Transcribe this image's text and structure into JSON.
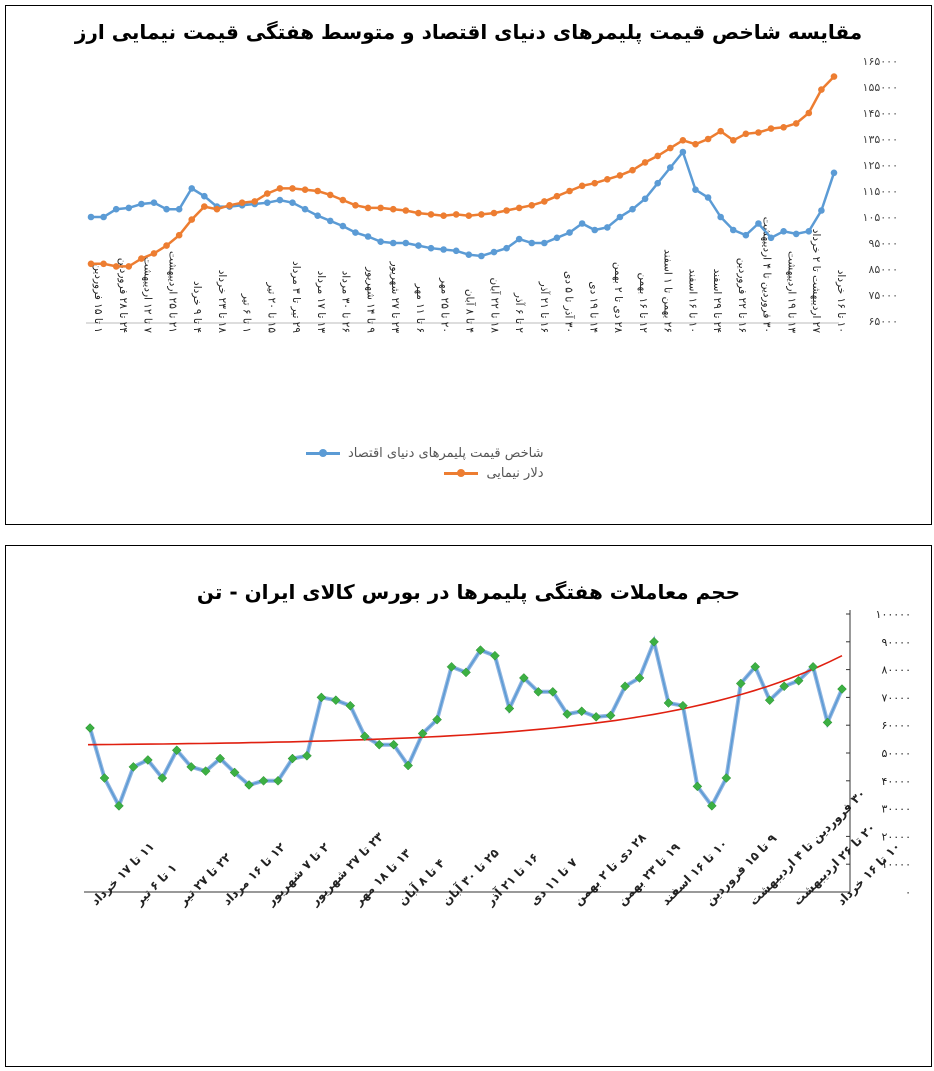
{
  "panel1": {
    "title": "مقایسه شاخص قیمت پلیمرهای دنیای اقتصاد و متوسط هفتگی قیمت نیمایی ارز"
  },
  "panel2": {
    "title": "حجم معاملات هفتگی پلیمرها در بورس کالای ایران - تن"
  },
  "colors": {
    "blue": "#5B9BD5",
    "orange": "#ED7D31",
    "green": "#3CB043",
    "red": "#E02010"
  },
  "chart_data": [
    {
      "type": "line",
      "title": "مقایسه شاخص قیمت پلیمرهای دنیای اقتصاد و متوسط هفتگی قیمت نیمایی ارز",
      "ylim": [
        65000,
        165000
      ],
      "y_ticks": [
        "۶۵۰۰۰",
        "۷۵۰۰۰",
        "۸۵۰۰۰",
        "۹۵۰۰۰",
        "۱۰۵۰۰۰",
        "۱۱۵۰۰۰",
        "۱۲۵۰۰۰",
        "۱۳۵۰۰۰",
        "۱۴۵۰۰۰",
        "۱۵۵۰۰۰",
        "۱۶۵۰۰۰"
      ],
      "category_labels": [
        "۱ تا ۱۵ فروردین",
        "۲۴ تا ۲۸ فروردین",
        "۷ تا ۱۲ اردیبهشت",
        "۲۱ تا ۲۵ اردیبهشت",
        "۴ تا ۹ خرداد",
        "۱۸ تا ۲۳ خرداد",
        "۱ تا ۶ تیر",
        "۱۵ تا ۲۰ تیر",
        "۲۹ تیر تا ۳ مرداد",
        "۱۳ تا ۱۷ مرداد",
        "۲۶ تا ۳۰ مرداد",
        "۹ تا ۱۴ شهریور",
        "۲۳ تا ۲۷ شهریور",
        "۶ تا ۱۱ مهر",
        "۲۰ تا ۲۵ مهر",
        "۴ تا ۸ آبان",
        "۱۸ تا ۲۲ آبان",
        "۲ تا ۶ آذر",
        "۱۶ تا ۲۱ آذر",
        "۳۰ آذر تا ۵ دی",
        "۱۴ تا ۱۹ دی",
        "۲۸ دی تا ۲ بهمن",
        "۱۲ تا ۱۶ بهمن",
        "۲۶ بهمن تا ۱ اسفند",
        "۱۰ تا ۱۶ اسفند",
        "۲۴ تا ۲۹ اسفند",
        "۱۶ تا ۲۲ فروردین",
        "۳۰ فروردین تا ۴ اردیبهشت",
        "۱۳ تا ۱۹ اردیبهشت",
        "۲۷ اردیبهشت تا ۲ خرداد",
        "۱۰ تا ۱۶ خرداد"
      ],
      "series": [
        {
          "name": "شاخص قیمت پلیمرهای دنیای اقتصاد",
          "color": "#5B9BD5",
          "values": [
            105000,
            105000,
            108000,
            108500,
            110000,
            110500,
            108000,
            108000,
            116000,
            113000,
            109000,
            109000,
            109500,
            110000,
            110500,
            111500,
            110500,
            108000,
            105500,
            103500,
            101500,
            99000,
            97500,
            95500,
            95000,
            95000,
            94000,
            93000,
            92500,
            92000,
            90500,
            90000,
            91500,
            93000,
            96500,
            95000,
            95000,
            97000,
            99000,
            102500,
            100000,
            101000,
            105000,
            108000,
            112000,
            118000,
            124000,
            130000,
            115500,
            112500,
            105000,
            100000,
            98000,
            102500,
            97000,
            99500,
            98500,
            99500,
            107500,
            122000
          ]
        },
        {
          "name": "دلار نیمایی",
          "color": "#ED7D31",
          "values": [
            87000,
            87000,
            86000,
            86000,
            89000,
            91000,
            94000,
            98000,
            104000,
            109000,
            108000,
            109500,
            110500,
            111000,
            114000,
            116000,
            116000,
            115500,
            115000,
            113500,
            111500,
            109500,
            108500,
            108500,
            108000,
            107500,
            106500,
            106000,
            105500,
            106000,
            105500,
            106000,
            106500,
            107500,
            108500,
            109500,
            111000,
            113000,
            115000,
            117000,
            118000,
            119500,
            121000,
            123000,
            126000,
            128500,
            131500,
            134500,
            133000,
            135000,
            138000,
            134500,
            137000,
            137500,
            139000,
            139500,
            141000,
            145000,
            154000,
            159000
          ]
        }
      ]
    },
    {
      "type": "line",
      "title": "حجم معاملات هفتگی پلیمرها در بورس کالای ایران - تن",
      "ylim": [
        0,
        100000
      ],
      "y_ticks": [
        "۰",
        "۱۰۰۰۰",
        "۲۰۰۰۰",
        "۳۰۰۰۰",
        "۴۰۰۰۰",
        "۵۰۰۰۰",
        "۶۰۰۰۰",
        "۷۰۰۰۰",
        "۸۰۰۰۰",
        "۹۰۰۰۰",
        "۱۰۰۰۰۰"
      ],
      "category_labels": [
        "۱۱ تا ۱۷ خرداد",
        "۱ تا ۶ تیر",
        "۲۲ تا ۲۷ تیر",
        "۱۲ تا ۱۶ مرداد",
        "۲ تا ۷ شهریور",
        "۲۳ تا ۲۷ شهریور",
        "۱۳ تا ۱۸ مهر",
        "۴ تا ۸ آبان",
        "۲۵ تا ۳۰ آبان",
        "۱۶ تا ۲۱ آذر",
        "۷ تا ۱۱ دی",
        "۲۸ دی تا ۲ بهمن",
        "۱۹ تا ۲۳ بهمن",
        "۱۰ تا ۱۶ اسفند",
        "۹ تا ۱۵ فروردین",
        "۳۰ فروردین تا ۴ اردیبهشت",
        "۲۰ تا ۲۶ اردیبهشت",
        "۱۰ تا ۱۶ خرداد"
      ],
      "series": [
        {
          "name": "",
          "color": "#5B9BD5",
          "marker_color": "#3CB043",
          "values": [
            59000,
            41000,
            31000,
            45000,
            47500,
            41000,
            51000,
            45000,
            43500,
            48000,
            43000,
            38500,
            40000,
            40000,
            48000,
            49000,
            70000,
            69000,
            67000,
            56000,
            53000,
            53000,
            45500,
            57000,
            62000,
            81000,
            79000,
            87000,
            85000,
            66000,
            77000,
            72000,
            72000,
            64000,
            65000,
            63000,
            63500,
            74000,
            77000,
            90000,
            68000,
            67000,
            38000,
            31000,
            41000,
            75000,
            81000,
            69000,
            74000,
            76000,
            81000,
            61000,
            73000
          ]
        },
        {
          "name": "",
          "type": "trendline",
          "color": "#E02010",
          "values": [
            53000,
            62000,
            85000
          ]
        }
      ]
    }
  ]
}
